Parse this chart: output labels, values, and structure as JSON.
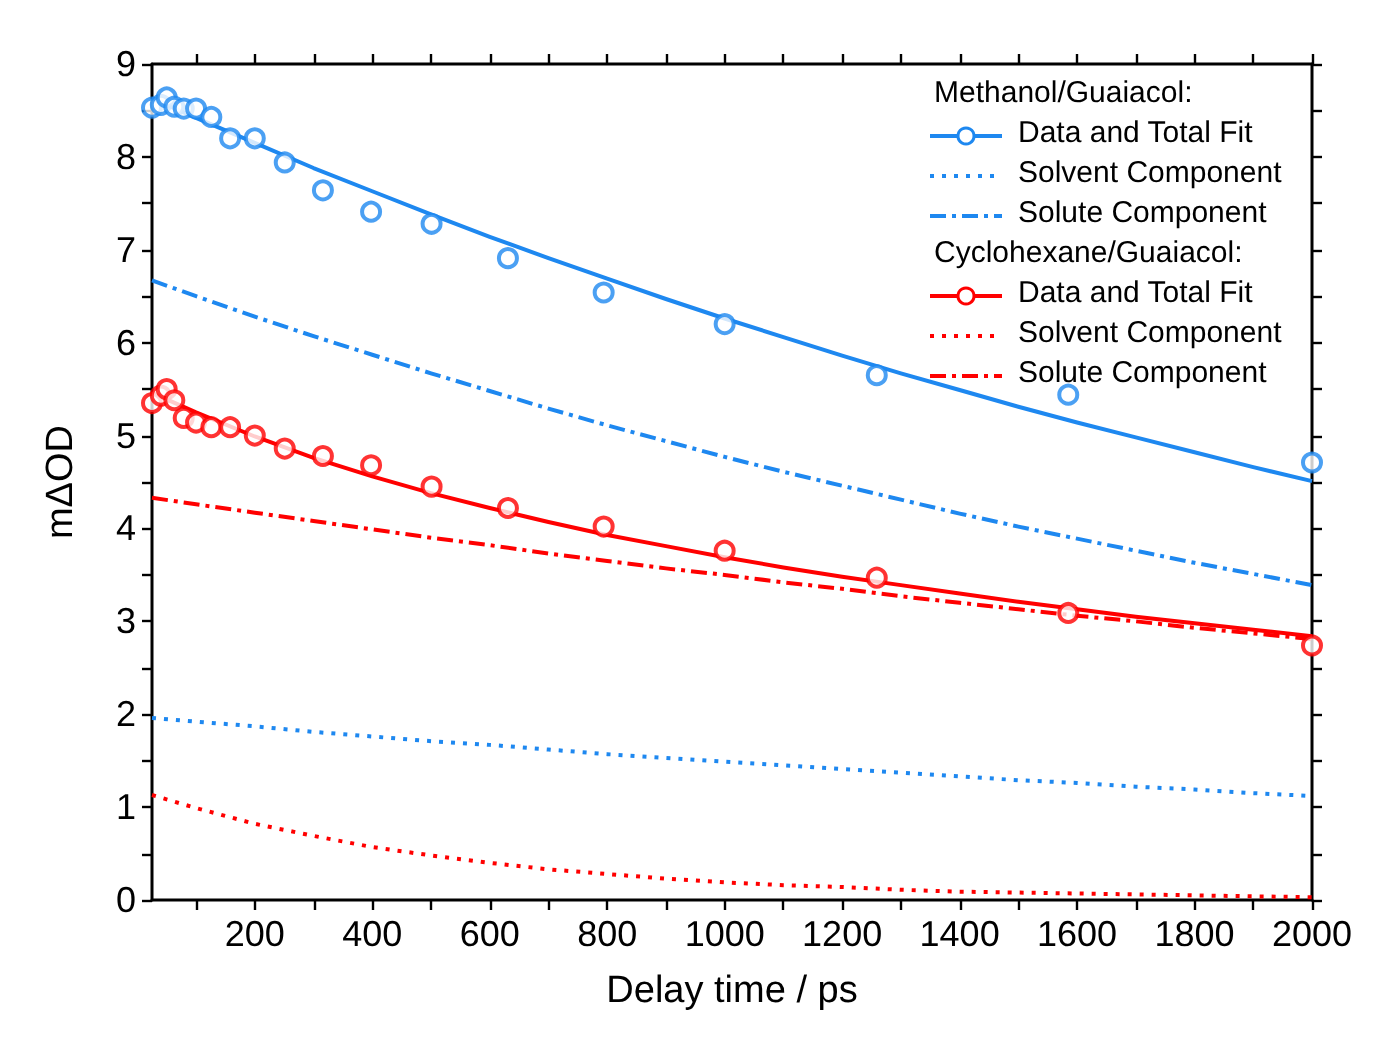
{
  "chart_data": {
    "type": "line",
    "xlabel": "Delay time / ps",
    "ylabel": "mΔOD",
    "annotations": [
      "Methanol/Guaiacol:",
      "Cyclohexane/Guaiacol:"
    ],
    "x": [
      25,
      100,
      200,
      300,
      400,
      500,
      600,
      700,
      800,
      900,
      1000,
      1100,
      1200,
      1300,
      1400,
      1500,
      1600,
      1700,
      1800,
      1900,
      2000
    ],
    "xlim": [
      25,
      2000
    ],
    "xticks": [
      {
        "value": 100,
        "label": null
      },
      200,
      {
        "value": 300,
        "label": null
      },
      400,
      {
        "value": 500,
        "label": null
      },
      600,
      {
        "value": 700,
        "label": null
      },
      800,
      {
        "value": 900,
        "label": null
      },
      1000,
      {
        "value": 1100,
        "label": null
      },
      1200,
      {
        "value": 1300,
        "label": null
      },
      1400,
      {
        "value": 1500,
        "label": null
      },
      1600,
      {
        "value": 1700,
        "label": null
      },
      1800,
      {
        "value": 1900,
        "label": null
      },
      2000
    ],
    "ylim": [
      0,
      9
    ],
    "yticks": [
      0,
      {
        "value": 0.5,
        "label": null
      },
      1,
      {
        "value": 1.5,
        "label": null
      },
      2,
      {
        "value": 2.5,
        "label": null
      },
      3,
      {
        "value": 3.5,
        "label": null
      },
      4,
      {
        "value": 4.5,
        "label": null
      },
      5,
      {
        "value": 5.5,
        "label": null
      },
      6,
      {
        "value": 6.5,
        "label": null
      },
      7,
      {
        "value": 7.5,
        "label": null
      },
      8,
      {
        "value": 8.5,
        "label": null
      },
      9
    ],
    "grid": false,
    "legend": "top right",
    "series": [
      {
        "name": "Data and Total Fit",
        "type": "scatter",
        "marker": "circle",
        "color": "#1e88f0",
        "x": [
          25,
          40,
          50,
          63,
          79,
          100,
          126,
          158,
          200,
          251,
          316,
          398,
          501,
          631,
          794,
          1000,
          1259,
          1585,
          2000
        ],
        "values": [
          8.53,
          8.56,
          8.64,
          8.54,
          8.52,
          8.52,
          8.43,
          8.2,
          8.2,
          7.94,
          7.64,
          7.41,
          7.28,
          6.91,
          6.54,
          6.2,
          5.65,
          5.44,
          4.71
        ]
      },
      {
        "line_style": "solid",
        "color": "#1e88f0",
        "values": [
          8.63,
          8.42,
          8.15,
          7.88,
          7.63,
          7.38,
          7.14,
          6.91,
          6.69,
          6.47,
          6.26,
          6.06,
          5.86,
          5.67,
          5.49,
          5.31,
          5.14,
          4.98,
          4.82,
          4.66,
          4.51
        ]
      },
      {
        "name": "Solvent Component",
        "line_style": "dotted",
        "color": "#1e88f0",
        "values": [
          1.96,
          1.92,
          1.87,
          1.81,
          1.76,
          1.71,
          1.67,
          1.62,
          1.57,
          1.53,
          1.49,
          1.45,
          1.41,
          1.37,
          1.33,
          1.29,
          1.26,
          1.22,
          1.19,
          1.15,
          1.12
        ]
      },
      {
        "name": "Solute Component",
        "line_style": "dashdot",
        "color": "#1e88f0",
        "values": [
          6.67,
          6.5,
          6.28,
          6.07,
          5.87,
          5.67,
          5.48,
          5.29,
          5.11,
          4.94,
          4.77,
          4.61,
          4.46,
          4.31,
          4.16,
          4.02,
          3.89,
          3.76,
          3.63,
          3.51,
          3.39
        ]
      },
      {
        "name": "Data and Total Fit",
        "type": "scatter",
        "marker": "circle",
        "color": "#ff0000",
        "x": [
          25,
          40,
          50,
          63,
          79,
          100,
          126,
          158,
          200,
          251,
          316,
          398,
          501,
          631,
          794,
          1000,
          1259,
          1585,
          2000
        ],
        "values": [
          5.35,
          5.43,
          5.5,
          5.38,
          5.19,
          5.14,
          5.09,
          5.09,
          5.0,
          4.86,
          4.78,
          4.68,
          4.45,
          4.22,
          4.02,
          3.76,
          3.47,
          3.09,
          2.74
        ]
      },
      {
        "line_style": "solid",
        "color": "#ff0000",
        "values": [
          5.46,
          5.25,
          4.99,
          4.76,
          4.56,
          4.38,
          4.22,
          4.07,
          3.93,
          3.81,
          3.69,
          3.58,
          3.48,
          3.39,
          3.3,
          3.21,
          3.13,
          3.05,
          2.98,
          2.91,
          2.84
        ]
      },
      {
        "name": "Solvent Component",
        "line_style": "dotted",
        "color": "#ff0000",
        "values": [
          1.13,
          0.99,
          0.82,
          0.69,
          0.57,
          0.48,
          0.4,
          0.33,
          0.28,
          0.23,
          0.19,
          0.16,
          0.14,
          0.11,
          0.09,
          0.08,
          0.07,
          0.06,
          0.05,
          0.04,
          0.03
        ]
      },
      {
        "name": "Solute Component",
        "line_style": "dashdot",
        "color": "#ff0000",
        "values": [
          4.33,
          4.26,
          4.17,
          4.08,
          3.99,
          3.9,
          3.82,
          3.73,
          3.65,
          3.57,
          3.5,
          3.42,
          3.35,
          3.27,
          3.2,
          3.13,
          3.06,
          3,
          2.93,
          2.87,
          2.81
        ]
      }
    ]
  }
}
